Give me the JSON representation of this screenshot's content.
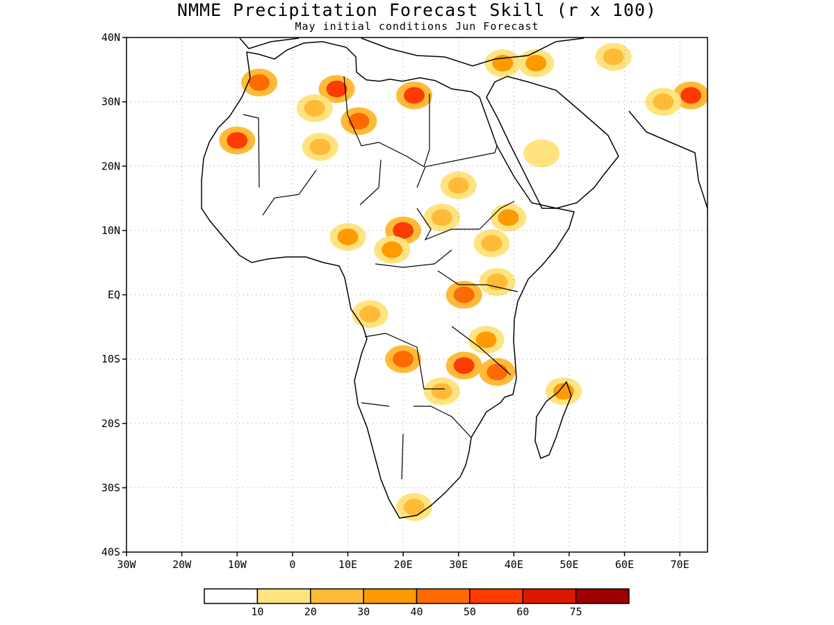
{
  "title": "NMME Precipitation Forecast Skill (r x 100)",
  "subtitle": "May initial conditions  Jun Forecast",
  "map": {
    "lon_min": -30,
    "lon_max": 75,
    "lat_min": -40,
    "lat_max": 40,
    "lat_ticks": [
      {
        "value": 40,
        "label": "40N"
      },
      {
        "value": 30,
        "label": "30N"
      },
      {
        "value": 20,
        "label": "20N"
      },
      {
        "value": 10,
        "label": "10N"
      },
      {
        "value": 0,
        "label": "EQ"
      },
      {
        "value": -10,
        "label": "10S"
      },
      {
        "value": -20,
        "label": "20S"
      },
      {
        "value": -30,
        "label": "30S"
      },
      {
        "value": -40,
        "label": "40S"
      }
    ],
    "lon_ticks": [
      {
        "value": -30,
        "label": "30W"
      },
      {
        "value": -20,
        "label": "20W"
      },
      {
        "value": -10,
        "label": "10W"
      },
      {
        "value": 0,
        "label": "0"
      },
      {
        "value": 10,
        "label": "10E"
      },
      {
        "value": 20,
        "label": "20E"
      },
      {
        "value": 30,
        "label": "30E"
      },
      {
        "value": 40,
        "label": "40E"
      },
      {
        "value": 50,
        "label": "50E"
      },
      {
        "value": 60,
        "label": "60E"
      },
      {
        "value": 70,
        "label": "70E"
      }
    ],
    "grid": "dotted",
    "skill_patches": [
      {
        "lon": -10,
        "lat": 24,
        "value": 55
      },
      {
        "lon": -6,
        "lat": 33,
        "value": 45
      },
      {
        "lon": 8,
        "lat": 32,
        "value": 50
      },
      {
        "lon": 22,
        "lat": 31,
        "value": 55
      },
      {
        "lon": 12,
        "lat": 27,
        "value": 40
      },
      {
        "lon": 4,
        "lat": 29,
        "value": 20
      },
      {
        "lon": 5,
        "lat": 23,
        "value": 20
      },
      {
        "lon": 30,
        "lat": 17,
        "value": 25
      },
      {
        "lon": 27,
        "lat": 12,
        "value": 20
      },
      {
        "lon": 20,
        "lat": 10,
        "value": 50
      },
      {
        "lon": 18,
        "lat": 7,
        "value": 30
      },
      {
        "lon": 10,
        "lat": 9,
        "value": 35
      },
      {
        "lon": 39,
        "lat": 12,
        "value": 35
      },
      {
        "lon": 36,
        "lat": 8,
        "value": 20
      },
      {
        "lon": 31,
        "lat": 0,
        "value": 40
      },
      {
        "lon": 37,
        "lat": 2,
        "value": 25
      },
      {
        "lon": 14,
        "lat": -3,
        "value": 25
      },
      {
        "lon": 20,
        "lat": -10,
        "value": 40
      },
      {
        "lon": 31,
        "lat": -11,
        "value": 55
      },
      {
        "lon": 37,
        "lat": -12,
        "value": 45
      },
      {
        "lon": 35,
        "lat": -7,
        "value": 30
      },
      {
        "lon": 27,
        "lat": -15,
        "value": 20
      },
      {
        "lon": 49,
        "lat": -15,
        "value": 30
      },
      {
        "lon": 22,
        "lat": -33,
        "value": 25
      },
      {
        "lon": 72,
        "lat": 31,
        "value": 55
      },
      {
        "lon": 67,
        "lat": 30,
        "value": 25
      },
      {
        "lon": 45,
        "lat": 22,
        "value": 15
      },
      {
        "lon": 44,
        "lat": 36,
        "value": 30
      },
      {
        "lon": 38,
        "lat": 36,
        "value": 35
      },
      {
        "lon": 58,
        "lat": 37,
        "value": 20
      }
    ]
  },
  "colorbar": {
    "colors": [
      "#ffffff",
      "#ffe37f",
      "#ffbb38",
      "#ff9a00",
      "#ff6a00",
      "#ff3a00",
      "#dd1800",
      "#9c0000"
    ],
    "labels": [
      "10",
      "20",
      "30",
      "40",
      "50",
      "60",
      "75"
    ],
    "thresholds": [
      10,
      20,
      30,
      40,
      50,
      60,
      75
    ]
  }
}
